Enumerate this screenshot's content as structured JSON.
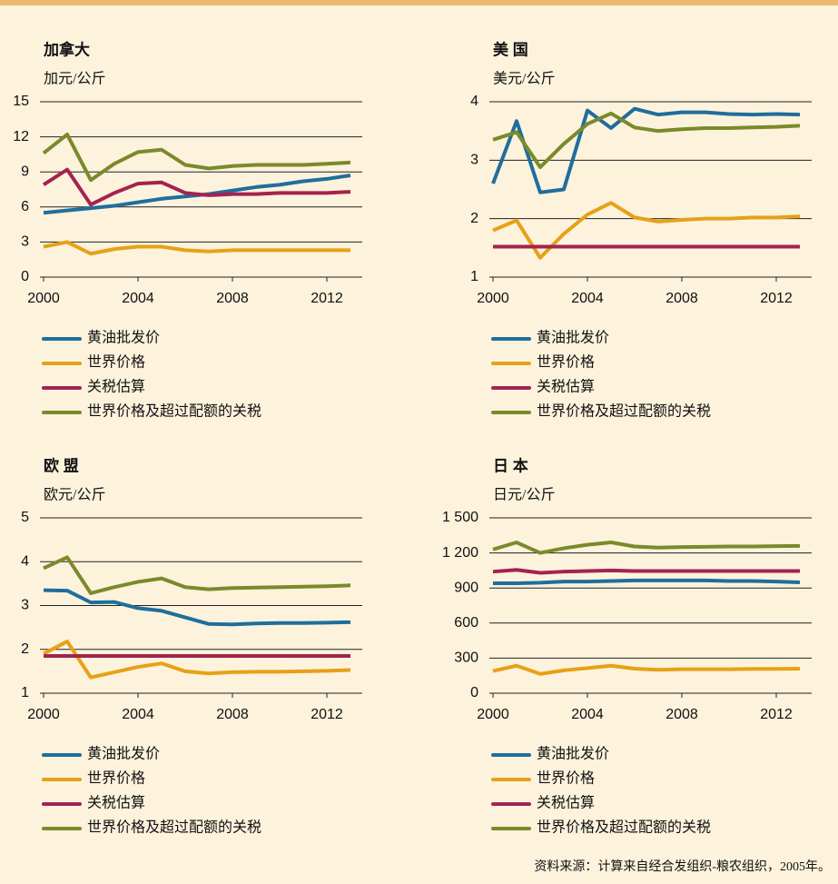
{
  "chart_data": [
    {
      "type": "line",
      "title": "加拿大",
      "y_label": "加元/公斤",
      "x": [
        2000,
        2001,
        2002,
        2003,
        2004,
        2005,
        2006,
        2007,
        2008,
        2009,
        2010,
        2011,
        2012,
        2013
      ],
      "xlim": [
        2000,
        2013.5
      ],
      "xticks": [
        2000,
        2004,
        2008,
        2012
      ],
      "ylim": [
        0,
        15
      ],
      "yticks": [
        0,
        3,
        6,
        9,
        12,
        15
      ],
      "grid": true,
      "series": [
        {
          "name": "黄油批发价",
          "color": "#1f6e9c",
          "values": [
            5.5,
            5.7,
            5.9,
            6.1,
            6.4,
            6.7,
            6.9,
            7.1,
            7.4,
            7.7,
            7.9,
            8.2,
            8.4,
            8.7
          ]
        },
        {
          "name": "世界价格",
          "color": "#e6a117",
          "values": [
            2.6,
            3.0,
            2.0,
            2.4,
            2.6,
            2.6,
            2.3,
            2.2,
            2.3,
            2.3,
            2.3,
            2.3,
            2.3,
            2.3
          ]
        },
        {
          "name": "关税估算",
          "color": "#a3234f",
          "values": [
            7.9,
            9.2,
            6.2,
            7.2,
            8.0,
            8.1,
            7.2,
            7.0,
            7.1,
            7.1,
            7.2,
            7.2,
            7.2,
            7.3
          ]
        },
        {
          "name": "世界价格及超过配额的关税",
          "color": "#7a8a2a",
          "values": [
            10.6,
            12.2,
            8.3,
            9.7,
            10.7,
            10.9,
            9.6,
            9.3,
            9.5,
            9.6,
            9.6,
            9.6,
            9.7,
            9.8
          ]
        }
      ]
    },
    {
      "type": "line",
      "title": "美 国",
      "y_label": "美元/公斤",
      "x": [
        2000,
        2001,
        2002,
        2003,
        2004,
        2005,
        2006,
        2007,
        2008,
        2009,
        2010,
        2011,
        2012,
        2013
      ],
      "xlim": [
        2000,
        2013.5
      ],
      "xticks": [
        2000,
        2004,
        2008,
        2012
      ],
      "ylim": [
        1,
        4
      ],
      "yticks": [
        1,
        2,
        3,
        4
      ],
      "grid": true,
      "series": [
        {
          "name": "黄油批发价",
          "color": "#1f6e9c",
          "values": [
            2.6,
            3.67,
            2.45,
            2.5,
            3.85,
            3.55,
            3.88,
            3.78,
            3.82,
            3.82,
            3.79,
            3.78,
            3.79,
            3.78
          ]
        },
        {
          "name": "世界价格",
          "color": "#e6a117",
          "values": [
            1.8,
            1.97,
            1.33,
            1.74,
            2.07,
            2.27,
            2.02,
            1.95,
            1.98,
            2.0,
            2.0,
            2.02,
            2.02,
            2.04
          ]
        },
        {
          "name": "关税估算",
          "color": "#a3234f",
          "values": [
            1.52,
            1.52,
            1.52,
            1.52,
            1.52,
            1.52,
            1.52,
            1.52,
            1.52,
            1.52,
            1.52,
            1.52,
            1.52,
            1.52
          ]
        },
        {
          "name": "世界价格及超过配额的关税",
          "color": "#7a8a2a",
          "values": [
            3.35,
            3.48,
            2.88,
            3.28,
            3.62,
            3.8,
            3.56,
            3.5,
            3.53,
            3.55,
            3.55,
            3.56,
            3.57,
            3.59
          ]
        }
      ]
    },
    {
      "type": "line",
      "title": "欧 盟",
      "y_label": "欧元/公斤",
      "x": [
        2000,
        2001,
        2002,
        2003,
        2004,
        2005,
        2006,
        2007,
        2008,
        2009,
        2010,
        2011,
        2012,
        2013
      ],
      "xlim": [
        2000,
        2013.5
      ],
      "xticks": [
        2000,
        2004,
        2008,
        2012
      ],
      "ylim": [
        1,
        5
      ],
      "yticks": [
        1,
        2,
        3,
        4,
        5
      ],
      "grid": true,
      "series": [
        {
          "name": "黄油批发价",
          "color": "#1f6e9c",
          "values": [
            3.35,
            3.34,
            3.07,
            3.08,
            2.94,
            2.88,
            2.73,
            2.58,
            2.57,
            2.59,
            2.6,
            2.6,
            2.61,
            2.62
          ]
        },
        {
          "name": "世界价格",
          "color": "#e6a117",
          "values": [
            1.9,
            2.18,
            1.36,
            1.48,
            1.6,
            1.68,
            1.5,
            1.45,
            1.48,
            1.49,
            1.49,
            1.5,
            1.51,
            1.53
          ]
        },
        {
          "name": "关税估算",
          "color": "#a3234f",
          "values": [
            1.85,
            1.85,
            1.85,
            1.85,
            1.85,
            1.85,
            1.85,
            1.85,
            1.85,
            1.85,
            1.85,
            1.85,
            1.85,
            1.85
          ]
        },
        {
          "name": "世界价格及超过配额的关税",
          "color": "#7a8a2a",
          "values": [
            3.85,
            4.1,
            3.28,
            3.42,
            3.54,
            3.62,
            3.42,
            3.37,
            3.4,
            3.41,
            3.42,
            3.43,
            3.44,
            3.46
          ]
        }
      ]
    },
    {
      "type": "line",
      "title": "日 本",
      "y_label": "日元/公斤",
      "x": [
        2000,
        2001,
        2002,
        2003,
        2004,
        2005,
        2006,
        2007,
        2008,
        2009,
        2010,
        2011,
        2012,
        2013
      ],
      "xlim": [
        2000,
        2013.5
      ],
      "xticks": [
        2000,
        2004,
        2008,
        2012
      ],
      "ylim": [
        0,
        1500
      ],
      "yticks": [
        0,
        300,
        600,
        900,
        {
          "value": 1200,
          "label": "1 200"
        },
        {
          "value": 1500,
          "label": "1 500"
        }
      ],
      "grid": true,
      "series": [
        {
          "name": "黄油批发价",
          "color": "#1f6e9c",
          "values": [
            940,
            940,
            945,
            955,
            955,
            960,
            965,
            965,
            965,
            965,
            960,
            960,
            955,
            948
          ]
        },
        {
          "name": "世界价格",
          "color": "#e6a117",
          "values": [
            190,
            235,
            165,
            195,
            215,
            235,
            210,
            200,
            205,
            205,
            205,
            208,
            208,
            210
          ]
        },
        {
          "name": "关税估算",
          "color": "#a3234f",
          "values": [
            1040,
            1055,
            1030,
            1040,
            1045,
            1050,
            1045,
            1045,
            1045,
            1045,
            1045,
            1045,
            1045,
            1045
          ]
        },
        {
          "name": "世界价格及超过配额的关税",
          "color": "#7a8a2a",
          "values": [
            1230,
            1290,
            1200,
            1240,
            1270,
            1290,
            1255,
            1245,
            1250,
            1252,
            1255,
            1255,
            1258,
            1260
          ]
        }
      ]
    }
  ],
  "source": "资料来源：计算来自经合发组织-粮农组织，2005年。"
}
